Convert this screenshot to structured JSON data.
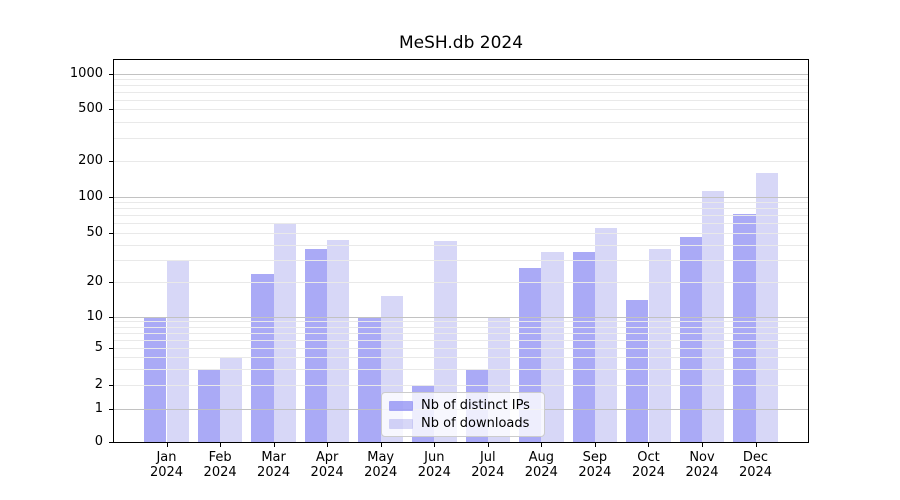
{
  "chart_data": {
    "type": "bar",
    "title": "MeSH.db 2024",
    "x_axis": {
      "categories": [
        "Jan",
        "Feb",
        "Mar",
        "Apr",
        "May",
        "Jun",
        "Jul",
        "Aug",
        "Sep",
        "Oct",
        "Nov",
        "Dec"
      ],
      "year_suffix": "2024"
    },
    "y_axis": {
      "scale": "symlog",
      "ticks": [
        0,
        1,
        2,
        5,
        10,
        20,
        50,
        100,
        200,
        500,
        1000
      ],
      "range": [
        0,
        1300
      ]
    },
    "series": [
      {
        "name": "Nb of distinct IPs",
        "color_hex": "#a9a9f6",
        "fill": "rgba(85,85,238,0.5)",
        "values": [
          10,
          3,
          23,
          37,
          10,
          2,
          3,
          26,
          35,
          14,
          46,
          72
        ]
      },
      {
        "name": "Nb of downloads",
        "color_hex": "#d7d7f7",
        "fill": "rgba(75,75,220,0.22)",
        "values": [
          30,
          4,
          59,
          44,
          15,
          43,
          10,
          35,
          55,
          37,
          112,
          160
        ]
      }
    ],
    "legend_position": "lower center",
    "grid": true,
    "colors": {
      "major_gridline": "#c2c2c2",
      "minor_gridline": "#e9e9e9",
      "axis": "#000000",
      "background": "#ffffff"
    }
  }
}
